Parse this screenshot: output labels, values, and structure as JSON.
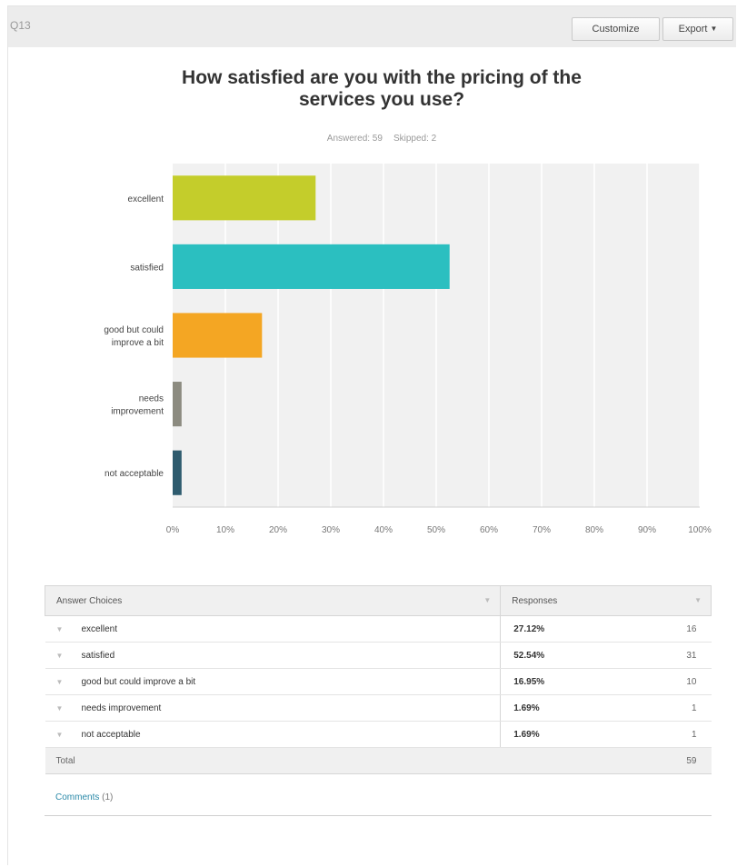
{
  "header": {
    "question_label": "Q13",
    "customize_label": "Customize",
    "export_label": "Export"
  },
  "title_line1": "How satisfied are you with the pricing of the",
  "title_line2": "services you use?",
  "answered_label": "Answered: 59",
  "skipped_label": "Skipped: 2",
  "chart_data": {
    "type": "bar",
    "orientation": "horizontal",
    "categories": [
      [
        "excellent"
      ],
      [
        "satisfied"
      ],
      [
        "good but could",
        "improve a bit"
      ],
      [
        "needs",
        "improvement"
      ],
      [
        "not acceptable"
      ]
    ],
    "values": [
      27.12,
      52.54,
      16.95,
      1.69,
      1.69
    ],
    "colors": [
      "#c4cd2b",
      "#2bbfc0",
      "#f4a623",
      "#8c8b80",
      "#2e5b6e"
    ],
    "xlim": [
      0,
      100
    ],
    "xticks": [
      "0%",
      "10%",
      "20%",
      "30%",
      "40%",
      "50%",
      "60%",
      "70%",
      "80%",
      "90%",
      "100%"
    ],
    "grid": true,
    "plot_background": "#f1f1f1"
  },
  "table": {
    "header_choices": "Answer Choices",
    "header_responses": "Responses",
    "rows": [
      {
        "choice": "excellent",
        "pct": "27.12%",
        "count": "16"
      },
      {
        "choice": "satisfied",
        "pct": "52.54%",
        "count": "31"
      },
      {
        "choice": "good but could improve a bit",
        "pct": "16.95%",
        "count": "10"
      },
      {
        "choice": "needs improvement",
        "pct": "1.69%",
        "count": "1"
      },
      {
        "choice": "not acceptable",
        "pct": "1.69%",
        "count": "1"
      }
    ],
    "total_label": "Total",
    "total_value": "59"
  },
  "comments_label": "Comments",
  "comments_count": "(1)"
}
